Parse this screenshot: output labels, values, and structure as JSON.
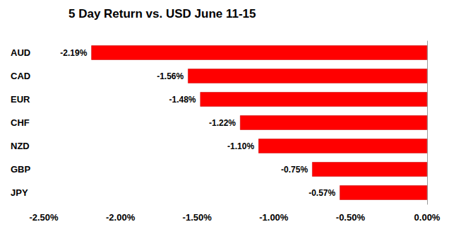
{
  "chart_data": {
    "type": "bar",
    "title": "5 Day Return vs. USD June 11-15",
    "orientation": "horizontal",
    "categories": [
      "AUD",
      "CAD",
      "EUR",
      "CHF",
      "NZD",
      "GBP",
      "JPY"
    ],
    "values": [
      -2.19,
      -1.56,
      -1.48,
      -1.22,
      -1.1,
      -0.75,
      -0.57
    ],
    "value_labels": [
      "-2.19%",
      "-1.56%",
      "-1.48%",
      "-1.22%",
      "-1.10%",
      "-0.75%",
      "-0.57%"
    ],
    "data_labels": true,
    "color": "#ff0000",
    "xlim": [
      -2.5,
      0
    ],
    "xticks": [
      {
        "value": -2.5,
        "label": "-2.50%"
      },
      {
        "value": -2.0,
        "label": "-2.00%"
      },
      {
        "value": -1.5,
        "label": "-1.50%"
      },
      {
        "value": -1.0,
        "label": "-1.00%"
      },
      {
        "value": -0.5,
        "label": "-0.50%"
      },
      {
        "value": 0,
        "label": "0.00%"
      }
    ],
    "grid": false
  }
}
